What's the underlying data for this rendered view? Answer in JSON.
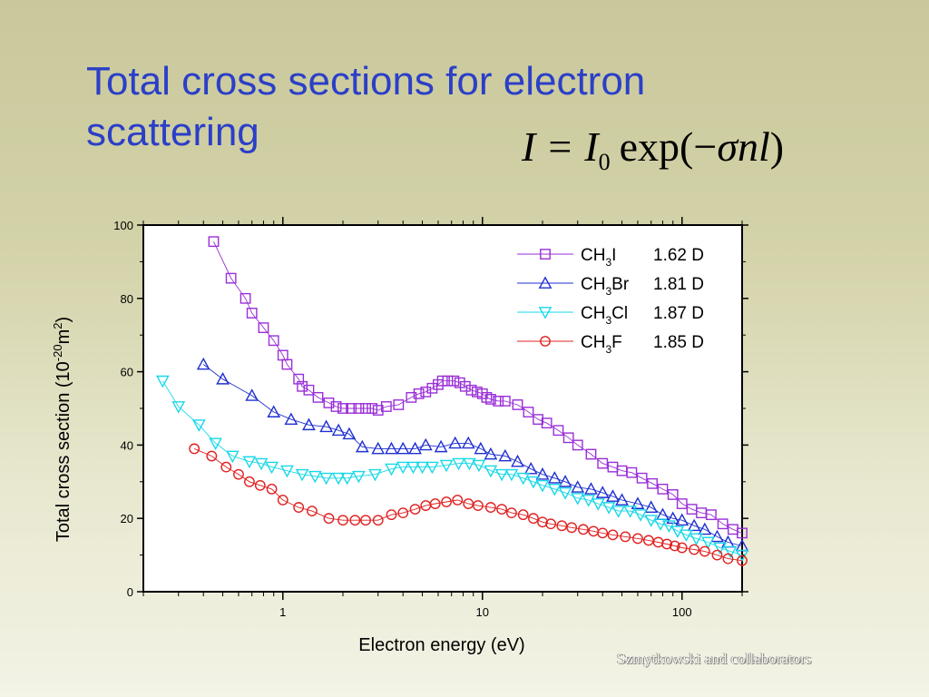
{
  "slide": {
    "title_line1": "Total cross sections for electron",
    "title_line2": "scattering",
    "formula": {
      "lhs": "I",
      "equals": "=",
      "I0_base": "I",
      "I0_sub": "0",
      "exp_open": "exp(",
      "minus": "−",
      "sigma": "σ",
      "nl": "nl",
      "close": ")"
    },
    "credit": "Szmytkowski and collaborators"
  },
  "colors": {
    "title": "#2b3fc7",
    "CH3I": "#9a2fd8",
    "CH3Br": "#1f2fd0",
    "CH3Cl": "#18d8e8",
    "CH3F": "#e02020"
  },
  "chart_data": {
    "type": "scatter",
    "x_scale": "log",
    "xlabel": "Electron energy (eV)",
    "ylabel": "Total cross section (10^-20 m^2)",
    "ylabel_parts": {
      "base": "Total cross section (10",
      "exp": "-20",
      "mid": "m",
      "exp2": "2",
      "end": ")"
    },
    "xlim": [
      0.2,
      200
    ],
    "ylim": [
      0,
      100
    ],
    "x_ticks": [
      1,
      10,
      100
    ],
    "x_tick_labels": [
      "1",
      "10",
      "100"
    ],
    "y_ticks": [
      0,
      20,
      40,
      60,
      80,
      100
    ],
    "y_tick_labels": [
      "0",
      "20",
      "40",
      "60",
      "80",
      "100"
    ],
    "legend_position": "top-right",
    "series": [
      {
        "name": "CH3I 1.62 D",
        "molecule_base": "CH",
        "molecule_sub": "3",
        "molecule_end": "I",
        "dipole": "1.62 D",
        "marker": "square",
        "color": "#9a2fd8",
        "x": [
          0.45,
          0.55,
          0.65,
          0.7,
          0.8,
          0.9,
          1.0,
          1.05,
          1.2,
          1.25,
          1.35,
          1.5,
          1.7,
          1.85,
          2.0,
          2.2,
          2.4,
          2.6,
          2.8,
          3.0,
          3.3,
          3.8,
          4.4,
          4.8,
          5.2,
          5.6,
          6.0,
          6.3,
          6.7,
          7.2,
          7.7,
          8.2,
          8.8,
          9.4,
          10,
          10.5,
          11,
          12,
          13,
          15,
          17,
          19,
          21,
          24,
          27,
          30,
          35,
          40,
          45,
          50,
          56,
          63,
          71,
          80,
          90,
          100,
          112,
          125,
          140,
          160,
          180,
          200
        ],
        "y": [
          95.5,
          85.5,
          80,
          76,
          72,
          68.5,
          64.5,
          62,
          58,
          56,
          55,
          53,
          51.5,
          50.5,
          50,
          50,
          50,
          50,
          50,
          49.5,
          50.5,
          51,
          53,
          54,
          54.5,
          55.5,
          56.5,
          57.5,
          57.5,
          57.5,
          57,
          56,
          55,
          54.5,
          54,
          53,
          52.5,
          52,
          52,
          51,
          49,
          47,
          46,
          44,
          42,
          40,
          37.5,
          35,
          34,
          33,
          32.5,
          31,
          29.5,
          28,
          26.5,
          24,
          22.5,
          21.5,
          21,
          18.5,
          17,
          16
        ]
      },
      {
        "name": "CH3Br 1.81 D",
        "molecule_base": "CH",
        "molecule_sub": "3",
        "molecule_end": "Br",
        "dipole": "1.81 D",
        "marker": "triangle-up",
        "color": "#1f2fd0",
        "x": [
          0.4,
          0.5,
          0.7,
          0.9,
          1.1,
          1.35,
          1.65,
          1.9,
          2.15,
          2.5,
          3.0,
          3.5,
          4.0,
          4.6,
          5.2,
          6.2,
          7.3,
          8.5,
          9.8,
          11,
          13,
          15,
          17.5,
          20,
          23,
          26,
          30,
          35,
          40,
          45,
          50,
          60,
          70,
          80,
          90,
          100,
          115,
          130,
          150,
          170,
          200
        ],
        "y": [
          62,
          58,
          53.5,
          49,
          47,
          45.5,
          45,
          44,
          43,
          39.5,
          39,
          39,
          39,
          39,
          40,
          39.5,
          40.5,
          40.5,
          39,
          37.5,
          37,
          35.5,
          33.5,
          32,
          31,
          30,
          28.5,
          28,
          27,
          26,
          25,
          24,
          23,
          21,
          20,
          19.5,
          18,
          17,
          15,
          13.5,
          12.5
        ]
      },
      {
        "name": "CH3Cl 1.87 D",
        "molecule_base": "CH",
        "molecule_sub": "3",
        "molecule_end": "Cl",
        "dipole": "1.87 D",
        "marker": "triangle-down",
        "color": "#18d8e8",
        "x": [
          0.25,
          0.3,
          0.38,
          0.46,
          0.56,
          0.68,
          0.78,
          0.88,
          1.05,
          1.25,
          1.45,
          1.65,
          1.9,
          2.1,
          2.4,
          2.9,
          3.5,
          4.0,
          4.5,
          5.0,
          5.6,
          6.6,
          7.6,
          8.6,
          9.6,
          11,
          12.5,
          14,
          16,
          18,
          20,
          23,
          26,
          30,
          34,
          38,
          43,
          48,
          55,
          62,
          70,
          78,
          86,
          95,
          105,
          118,
          135,
          155,
          175,
          200
        ],
        "y": [
          57.5,
          50.5,
          45.5,
          40.5,
          37,
          35.5,
          35,
          34,
          33,
          32,
          31.5,
          31,
          31,
          31,
          31.5,
          32,
          33.5,
          34,
          34,
          34,
          34,
          34.5,
          35,
          35,
          34.5,
          33,
          32,
          32,
          31,
          30,
          29,
          28,
          27,
          25.5,
          25,
          24,
          23,
          22,
          22,
          21,
          19.5,
          18.5,
          18,
          16.5,
          15.5,
          14.5,
          13.5,
          12,
          11,
          10
        ]
      },
      {
        "name": "CH3F 1.85 D",
        "molecule_base": "CH",
        "molecule_sub": "3",
        "molecule_end": "F",
        "dipole": "1.85 D",
        "marker": "circle",
        "color": "#e02020",
        "x": [
          0.36,
          0.44,
          0.52,
          0.6,
          0.68,
          0.77,
          0.88,
          1.0,
          1.2,
          1.4,
          1.7,
          2.0,
          2.3,
          2.6,
          3.0,
          3.5,
          4.0,
          4.6,
          5.2,
          5.8,
          6.6,
          7.5,
          8.5,
          9.5,
          11,
          12.5,
          14,
          16,
          18,
          20,
          22,
          25,
          28,
          32,
          36,
          40,
          45,
          52,
          60,
          68,
          76,
          84,
          92,
          100,
          115,
          130,
          150,
          170,
          200
        ],
        "y": [
          39,
          37,
          34,
          32,
          30,
          29,
          28,
          25,
          23,
          22,
          20,
          19.5,
          19.5,
          19.5,
          19.5,
          21,
          21.5,
          22.5,
          23.5,
          24,
          24.5,
          25,
          24,
          23.5,
          23,
          22.5,
          21.5,
          21,
          20,
          19,
          18.5,
          18,
          17.5,
          17,
          16.5,
          16,
          15.5,
          15,
          14.5,
          14,
          13.5,
          13,
          12.5,
          12,
          11.5,
          11,
          10,
          9,
          8.5
        ]
      }
    ]
  }
}
